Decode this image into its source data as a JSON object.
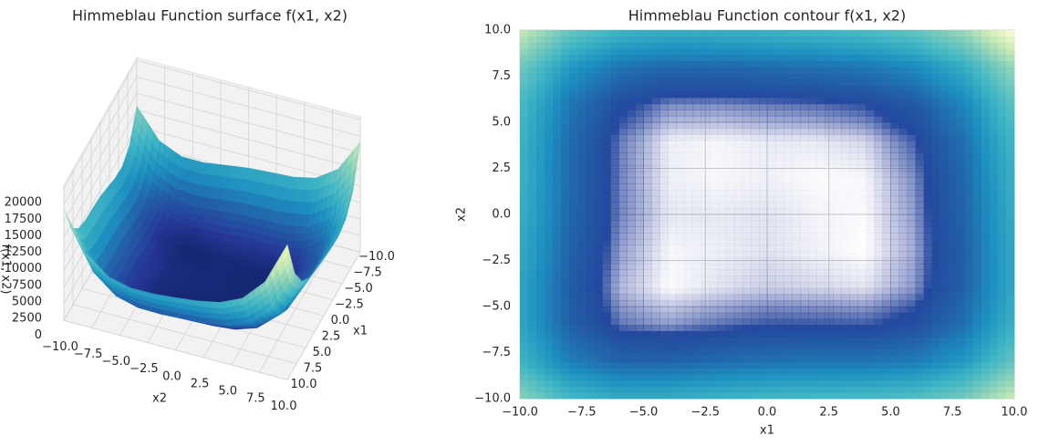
{
  "chart_data": [
    {
      "type": "surface",
      "title": "Himmeblau Function surface f(x1, x2)",
      "xlabel": "x1",
      "ylabel": "x2",
      "zlabel": "f(x1, x2)",
      "x": [
        -10,
        -8,
        -6,
        -4,
        -2,
        0,
        2,
        4,
        6,
        8,
        10
      ],
      "y": [
        -10,
        -8,
        -6,
        -4,
        -2,
        0,
        2,
        4,
        6,
        8,
        10
      ],
      "z": [
        [
          13130,
          9074,
          7794,
          7946,
          8570,
          9090,
          9314,
          9434,
          10026,
          12050,
          16850
        ],
        [
          8770,
          4426,
          2890,
          2818,
          3250,
          3610,
          3706,
          3730,
          4258,
          6250,
          11050
        ],
        [
          7250,
          2650,
          890,
          626,
          898,
          1130,
          1130,
          1090,
          1586,
          3578,
          8410
        ],
        [
          7226,
          2402,
          450,
          26,
          170,
          306,
          242,
          170,
          666,
          2690,
          7586
        ],
        [
          7738,
          2722,
          610,
          58,
          106,
          178,
          82,
          10,
          538,
          2626,
          7618
        ],
        [
          8210,
          3034,
          794,
          146,
          130,
          170,
          74,
          34,
          626,
          2810,
          7930
        ],
        [
          8450,
          3146,
          810,
          98,
          50,
          90,
          26,
          50,
          738,
          3050,
          8330
        ],
        [
          8650,
          3250,
          850,
          106,
          58,
          130,
          130,
          250,
          1066,
          3538,
          9010
        ],
        [
          9386,
          3922,
          1490,
          746,
          730,
          866,
          962,
          1210,
          2186,
          4850,
          10546
        ],
        [
          11618,
          6122,
          3690,
          2978,
          3026,
          3258,
          3482,
          3890,
          5058,
          7946,
          13898
        ],
        [
          16690,
          11194,
          8794,
          8146,
          8290,
          8650,
          9034,
          9634,
          11026,
          14170,
          20410
        ]
      ],
      "xlim": [
        -10,
        10
      ],
      "ylim": [
        -10,
        10
      ],
      "zlim": [
        0,
        20410
      ],
      "xticks": [
        {
          "value": -10,
          "label": "−10.0"
        },
        {
          "value": -7.5,
          "label": "−7.5"
        },
        {
          "value": -5,
          "label": "−5.0"
        },
        {
          "value": -2.5,
          "label": "−2.5"
        },
        {
          "value": 0,
          "label": "0.0"
        },
        2.5,
        {
          "value": 5,
          "label": "5.0"
        },
        7.5,
        {
          "value": 10,
          "label": "10.0"
        }
      ],
      "yticks": [
        {
          "value": -10,
          "label": "−10.0"
        },
        {
          "value": -7.5,
          "label": "−7.5"
        },
        {
          "value": -5,
          "label": "−5.0"
        },
        {
          "value": -2.5,
          "label": "−2.5"
        },
        {
          "value": 0,
          "label": "0.0"
        },
        2.5,
        {
          "value": 5,
          "label": "5.0"
        },
        7.5,
        {
          "value": 10,
          "label": "10.0"
        }
      ],
      "zticks": [
        0,
        2500,
        5000,
        7500,
        10000,
        12500,
        15000,
        17500,
        20000
      ],
      "colors": [
        "#081d58",
        "#253494",
        "#225ea8",
        "#1d91c0",
        "#41b6c4",
        "#7fcdbb",
        "#c7e9b4",
        "#edf8b1"
      ],
      "grid": true
    },
    {
      "type": "contour",
      "title": "Himmeblau Function contour f(x1, x2)",
      "xlabel": "x1",
      "ylabel": "x2",
      "x": [
        -10,
        -8,
        -6,
        -4,
        -2,
        0,
        2,
        4,
        6,
        8,
        10
      ],
      "y": [
        -10,
        -8,
        -6,
        -4,
        -2,
        0,
        2,
        4,
        6,
        8,
        10
      ],
      "z": [
        [
          13130,
          9074,
          7794,
          7946,
          8570,
          9090,
          9314,
          9434,
          10026,
          12050,
          16850
        ],
        [
          8770,
          4426,
          2890,
          2818,
          3250,
          3610,
          3706,
          3730,
          4258,
          6250,
          11050
        ],
        [
          7250,
          2650,
          890,
          626,
          898,
          1130,
          1130,
          1090,
          1586,
          3578,
          8410
        ],
        [
          7226,
          2402,
          450,
          26,
          170,
          306,
          242,
          170,
          666,
          2690,
          7586
        ],
        [
          7738,
          2722,
          610,
          58,
          106,
          178,
          82,
          10,
          538,
          2626,
          7618
        ],
        [
          8210,
          3034,
          794,
          146,
          130,
          170,
          74,
          34,
          626,
          2810,
          7930
        ],
        [
          8450,
          3146,
          810,
          98,
          50,
          90,
          26,
          50,
          738,
          3050,
          8330
        ],
        [
          8650,
          3250,
          850,
          106,
          58,
          130,
          130,
          250,
          1066,
          3538,
          9010
        ],
        [
          9386,
          3922,
          1490,
          746,
          730,
          866,
          962,
          1210,
          2186,
          4850,
          10546
        ],
        [
          11618,
          6122,
          3690,
          2978,
          3026,
          3258,
          3482,
          3890,
          5058,
          7946,
          13898
        ],
        [
          16690,
          11194,
          8794,
          8146,
          8290,
          8650,
          9034,
          9634,
          11026,
          14170,
          20410
        ]
      ],
      "xlim": [
        -10,
        10
      ],
      "ylim": [
        -10,
        10
      ],
      "xticks": [
        {
          "value": -10,
          "label": "−10.0"
        },
        {
          "value": -7.5,
          "label": "−7.5"
        },
        {
          "value": -5,
          "label": "−5.0"
        },
        {
          "value": -2.5,
          "label": "−2.5"
        },
        {
          "value": 0,
          "label": "0.0"
        },
        2.5,
        {
          "value": 5,
          "label": "5.0"
        },
        7.5,
        {
          "value": 10,
          "label": "10.0"
        }
      ],
      "yticks": [
        {
          "value": -10,
          "label": "−10.0"
        },
        {
          "value": -7.5,
          "label": "−7.5"
        },
        {
          "value": -5,
          "label": "−5.0"
        },
        {
          "value": -2.5,
          "label": "−2.5"
        },
        {
          "value": 0,
          "label": "0.0"
        },
        2.5,
        {
          "value": 5,
          "label": "5.0"
        },
        7.5,
        {
          "value": 10,
          "label": "10.0"
        }
      ],
      "colors": [
        "#081d58",
        "#253494",
        "#225ea8",
        "#1d91c0",
        "#41b6c4",
        "#7fcdbb",
        "#c7e9b4",
        "#ffffd9"
      ],
      "grid": true
    }
  ]
}
